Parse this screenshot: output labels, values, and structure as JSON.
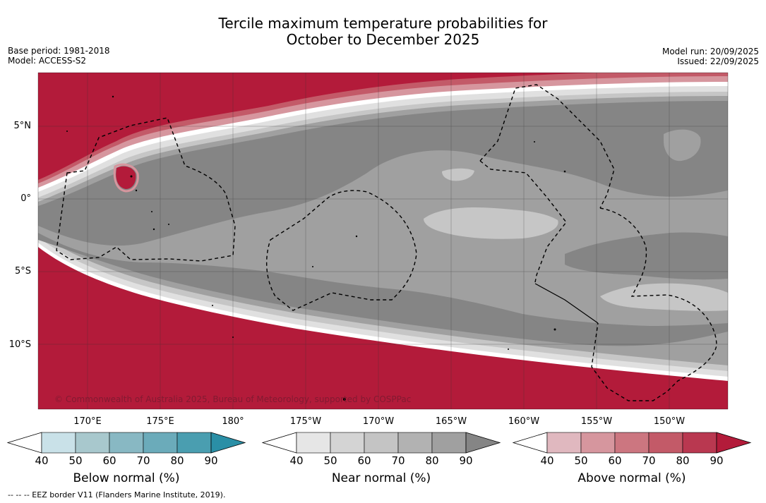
{
  "header": {
    "title_line1": "Tercile maximum temperature probabilities for",
    "title_line2": "October to December 2025",
    "base_period": "Base period: 1981-2018",
    "model": "Model: ACCESS-S2",
    "model_run": "Model run: 20/09/2025",
    "issued": "Issued: 22/09/2025"
  },
  "map": {
    "lat_labels": [
      "5°N",
      "0°",
      "5°S",
      "10°S"
    ],
    "lon_labels": [
      "170°E",
      "175°E",
      "180°",
      "175°W",
      "170°W",
      "165°W",
      "160°W",
      "155°W",
      "150°W"
    ],
    "copyright": "© Commonwealth of Australia 2025, Bureau of Meteorology, supported by COSPPac",
    "colors": {
      "above_90": "#b31b3a",
      "near_80": "#858585",
      "near_70": "#a0a0a0",
      "near_60": "#c6c6c6"
    }
  },
  "colorbars": {
    "below": {
      "title": "Below normal (%)",
      "ticks": [
        "40",
        "50",
        "60",
        "70",
        "80",
        "90"
      ],
      "colors": [
        "#c9e1e8",
        "#a8c8cd",
        "#88b8c3",
        "#6babba",
        "#4a9eb0",
        "#2a8fa6"
      ]
    },
    "near": {
      "title": "Near normal (%)",
      "ticks": [
        "40",
        "50",
        "60",
        "70",
        "80",
        "90"
      ],
      "colors": [
        "#e6e6e6",
        "#d4d4d4",
        "#c4c4c4",
        "#b2b2b2",
        "#a0a0a0",
        "#858585"
      ]
    },
    "above": {
      "title": "Above normal (%)",
      "ticks": [
        "40",
        "50",
        "60",
        "70",
        "80",
        "90"
      ],
      "colors": [
        "#e0b8bf",
        "#d6969e",
        "#cc7680",
        "#c35a68",
        "#b93850",
        "#b31b3a"
      ]
    }
  },
  "footnote": "--  --  -- EEZ border V11 (Flanders Marine Institute, 2019)."
}
